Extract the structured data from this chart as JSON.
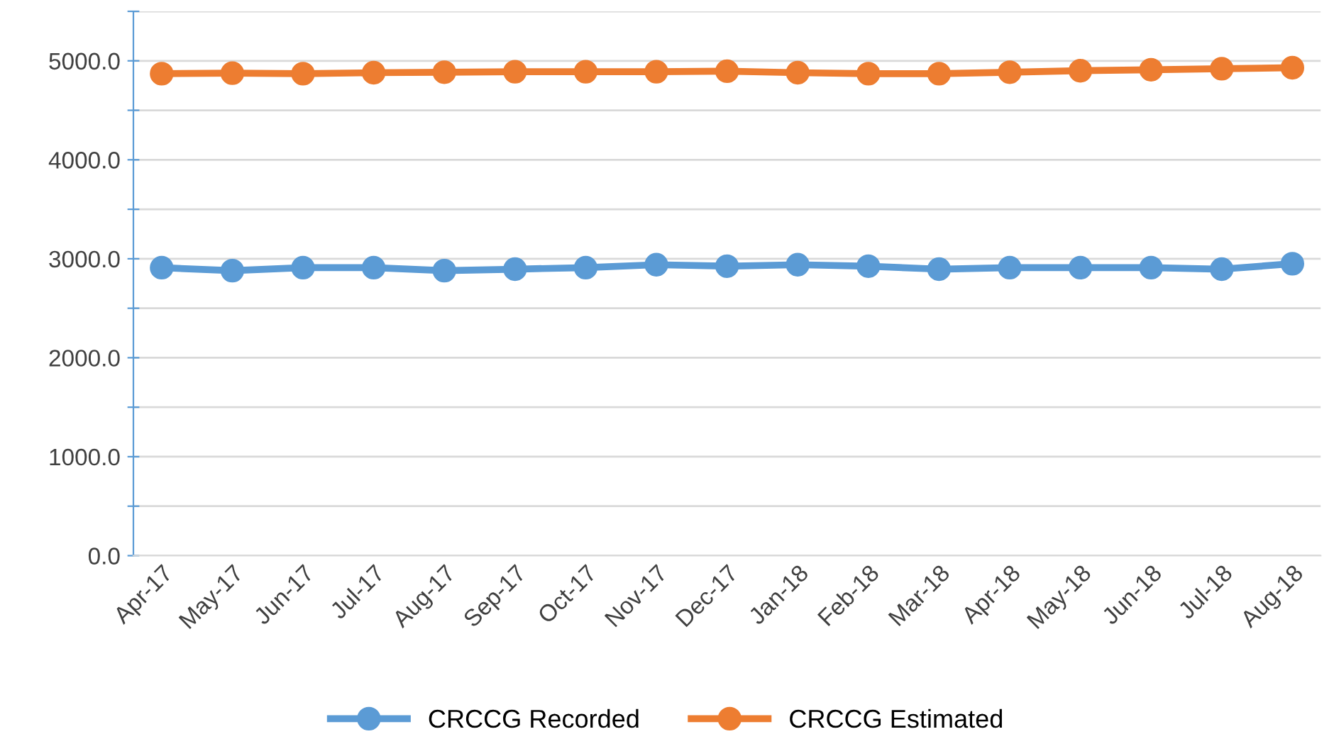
{
  "chart_data": {
    "type": "line",
    "categories": [
      "Apr-17",
      "May-17",
      "Jun-17",
      "Jul-17",
      "Aug-17",
      "Sep-17",
      "Oct-17",
      "Nov-17",
      "Dec-17",
      "Jan-18",
      "Feb-18",
      "Mar-18",
      "Apr-18",
      "May-18",
      "Jun-18",
      "Jul-18",
      "Aug-18"
    ],
    "series": [
      {
        "name": "CRCCG Recorded",
        "color": "#5b9bd5",
        "values": [
          2910,
          2880,
          2910,
          2910,
          2880,
          2895,
          2910,
          2940,
          2925,
          2940,
          2925,
          2895,
          2910,
          2910,
          2910,
          2895,
          2950
        ]
      },
      {
        "name": "CRCCG Estimated",
        "color": "#ed7d31",
        "values": [
          4870,
          4875,
          4870,
          4880,
          4885,
          4890,
          4890,
          4890,
          4895,
          4880,
          4870,
          4870,
          4885,
          4900,
          4910,
          4920,
          4930
        ]
      }
    ],
    "ylim": [
      0,
      5500
    ],
    "yticks": [
      {
        "value": 0,
        "label": "0.0"
      },
      {
        "value": 500,
        "label": null
      },
      {
        "value": 1000,
        "label": "1000.0"
      },
      {
        "value": 1500,
        "label": null
      },
      {
        "value": 2000,
        "label": "2000.0"
      },
      {
        "value": 2500,
        "label": null
      },
      {
        "value": 3000,
        "label": "3000.0"
      },
      {
        "value": 3500,
        "label": null
      },
      {
        "value": 4000,
        "label": "4000.0"
      },
      {
        "value": 4500,
        "label": null
      },
      {
        "value": 5000,
        "label": "5000.0"
      },
      {
        "value": 5500,
        "label": null
      }
    ],
    "grid": "y",
    "legend": "bottom",
    "marker": "circle",
    "line_style": "solid"
  }
}
